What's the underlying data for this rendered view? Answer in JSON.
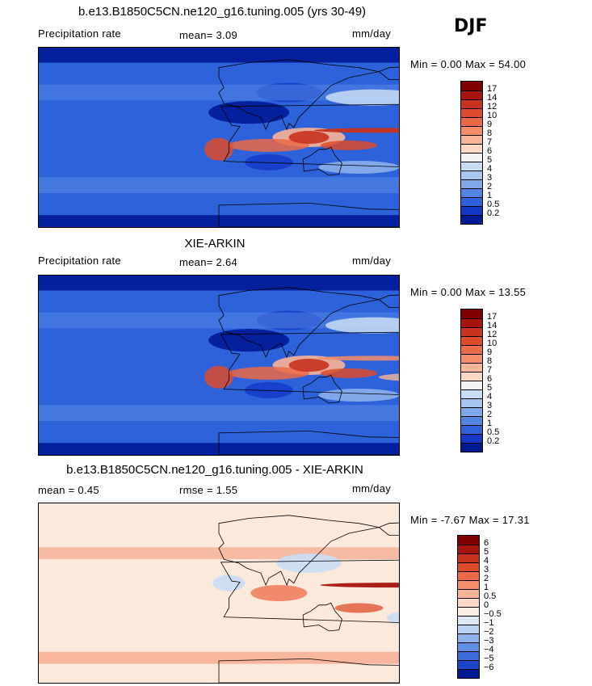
{
  "season": "DJF",
  "panels": [
    {
      "title": "b.e13.B1850C5CN.ne120_g16.tuning.005 (yrs 30-49)",
      "left_label": "Precipitation rate",
      "center_label": "mean=   3.09",
      "units": "mm/day",
      "minmax": "Min =    0.00 Max =  54.00",
      "colorbar": {
        "labels": [
          "17",
          "14",
          "12",
          "10",
          "9",
          "8",
          "7",
          "6",
          "5",
          "4",
          "3",
          "2",
          "1",
          "0.5",
          "0.2"
        ],
        "colors": [
          "#7f0000",
          "#a8140e",
          "#c8321e",
          "#de4b2a",
          "#ec6a45",
          "#f48d6a",
          "#f9b596",
          "#fcd9c4",
          "#f2f2f2",
          "#c9def5",
          "#a6c6f0",
          "#7ea8ea",
          "#5385e3",
          "#2d62da",
          "#1338c8",
          "#001a96"
        ]
      },
      "map_style": "model"
    },
    {
      "title": "XIE-ARKIN",
      "left_label": "Precipitation rate",
      "center_label": "mean=   2.64",
      "units": "mm/day",
      "minmax": "Min =    0.00 Max =  13.55",
      "colorbar": {
        "labels": [
          "17",
          "14",
          "12",
          "10",
          "9",
          "8",
          "7",
          "6",
          "5",
          "4",
          "3",
          "2",
          "1",
          "0.5",
          "0.2"
        ],
        "colors": [
          "#7f0000",
          "#a8140e",
          "#c8321e",
          "#de4b2a",
          "#ec6a45",
          "#f48d6a",
          "#f9b596",
          "#fcd9c4",
          "#f2f2f2",
          "#c9def5",
          "#a6c6f0",
          "#7ea8ea",
          "#5385e3",
          "#2d62da",
          "#1338c8",
          "#001a96"
        ]
      },
      "map_style": "obs"
    },
    {
      "title": "b.e13.B1850C5CN.ne120_g16.tuning.005 - XIE-ARKIN",
      "left_label": "mean =    0.45",
      "center_label": "rmse =    1.55",
      "units": "mm/day",
      "minmax": "Min =  -7.67 Max =  17.31",
      "colorbar": {
        "labels": [
          "6",
          "5",
          "4",
          "3",
          "2",
          "1",
          "0.5",
          "0",
          "-0.5",
          "-1",
          "-2",
          "-3",
          "-4",
          "-5",
          "-6"
        ],
        "colors": [
          "#7f0000",
          "#a8140e",
          "#c8321e",
          "#de4b2a",
          "#ec6a45",
          "#f48d6a",
          "#f9b596",
          "#fcdcc8",
          "#fdeee4",
          "#dde9f7",
          "#b9d2f2",
          "#8fb3ec",
          "#6090e4",
          "#3a6cdb",
          "#1a45c9",
          "#001a96"
        ]
      },
      "map_style": "diff"
    }
  ]
}
